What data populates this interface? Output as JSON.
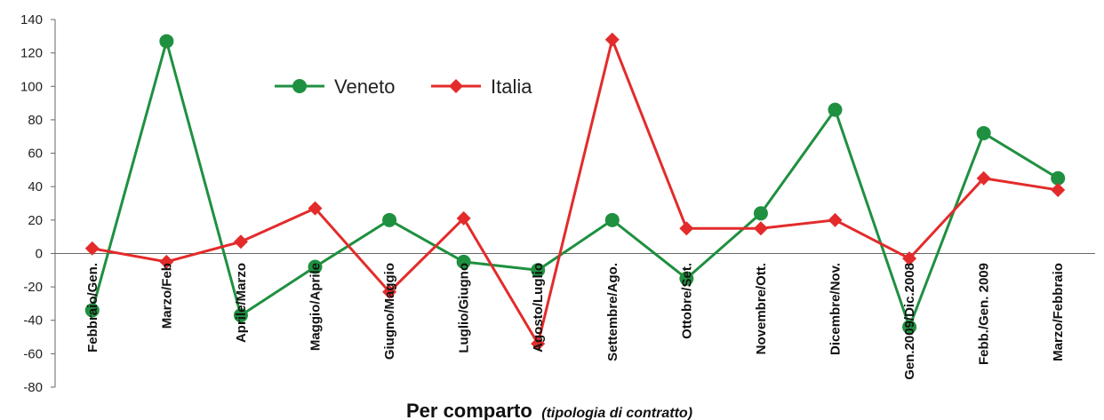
{
  "chart_data": {
    "type": "line",
    "title": "",
    "xlabel": "Per comparto",
    "xlabel_sub": "(tipologia di contratto)",
    "ylabel": "",
    "ylim": [
      -80,
      140
    ],
    "yticks": [
      -80,
      -60,
      -40,
      -20,
      0,
      20,
      40,
      60,
      80,
      100,
      120,
      140
    ],
    "grid": false,
    "legend_position": "top-center",
    "categories": [
      "Febbraio/Gen.",
      "Marzo/Feb",
      "Aprile/Marzo",
      "Maggio/Aprile",
      "Giugno/Maggio",
      "Luglio/Giugno",
      "Agosto/Luglio",
      "Settembre/Ago.",
      "Ottobre/Set.",
      "Novembre/Ott.",
      "Dicembre/Nov.",
      "Gen.2009/Dic.2008",
      "Febb./Gen. 2009",
      "Marzo/Febbraio"
    ],
    "series": [
      {
        "name": "Veneto",
        "color": "#1f9040",
        "marker": "circle",
        "values": [
          -34,
          127,
          -37,
          -8,
          20,
          -5,
          -10,
          20,
          -15,
          24,
          86,
          -44,
          72,
          45
        ]
      },
      {
        "name": "Italia",
        "color": "#e32b2b",
        "marker": "diamond",
        "values": [
          3,
          -5,
          7,
          27,
          -23,
          21,
          -54,
          128,
          15,
          15,
          20,
          -3,
          45,
          38
        ]
      }
    ]
  }
}
